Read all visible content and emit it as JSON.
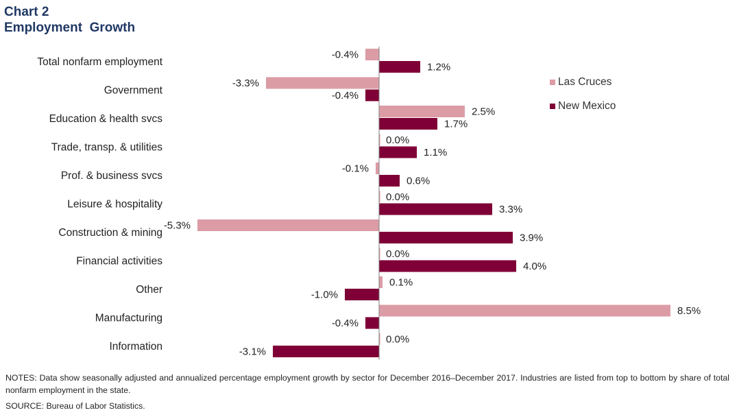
{
  "header": {
    "chart_number": "Chart 2",
    "title": "Employment  Growth"
  },
  "footer": {
    "notes": "NOTES: Data show seasonally adjusted and annualized percentage employment growth by sector for December 2016–December 2017. Industries are listed from top to bottom by share of total nonfarm employment in the state.",
    "source": "SOURCE: Bureau of Labor Statistics."
  },
  "colors": {
    "las_cruces": "#dc9ca6",
    "new_mexico": "#7f0036",
    "title": "#1f3864"
  },
  "chart_data": {
    "type": "bar",
    "orientation": "horizontal",
    "title": "Employment  Growth",
    "xlabel": "",
    "ylabel": "",
    "value_suffix": "%",
    "grid": false,
    "legend_position": "top-right",
    "categories": [
      "Total nonfarm employment",
      "Government",
      "Education & health svcs",
      "Trade, transp. & utilities",
      "Prof. & business svcs",
      "Leisure & hospitality",
      "Construction & mining",
      "Financial activities",
      "Other",
      "Manufacturing",
      "Information"
    ],
    "series": [
      {
        "name": "Las Cruces",
        "color": "#dc9ca6",
        "values": [
          -0.4,
          -3.3,
          2.5,
          0.0,
          -0.1,
          0.0,
          -5.3,
          0.0,
          0.1,
          8.5,
          0.0
        ]
      },
      {
        "name": "New Mexico",
        "color": "#7f0036",
        "values": [
          1.2,
          -0.4,
          1.7,
          1.1,
          0.6,
          3.3,
          3.9,
          4.0,
          -1.0,
          -0.4,
          -3.1
        ]
      }
    ]
  }
}
